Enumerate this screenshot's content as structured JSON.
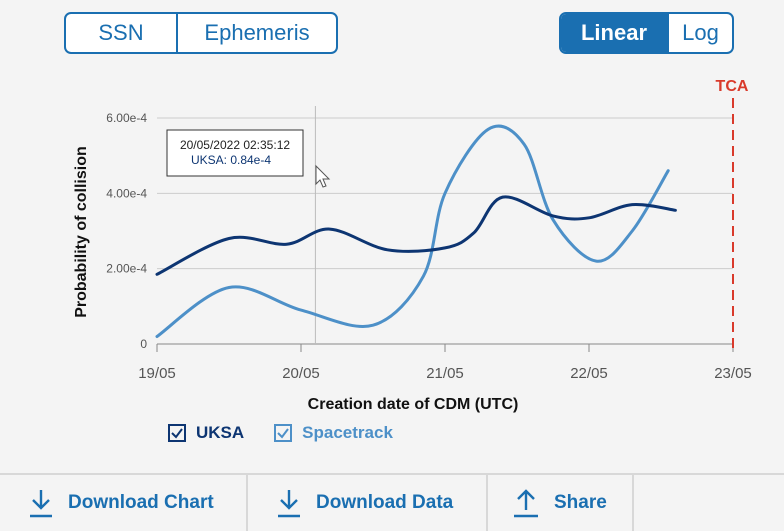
{
  "toggles": {
    "left": [
      "SSN",
      "Ephemeris"
    ],
    "scale": [
      "Linear",
      "Log"
    ],
    "scale_active": "Linear"
  },
  "chart_data": {
    "type": "line",
    "xlabel": "Creation date of CDM (UTC)",
    "ylabel": "Probability of collision",
    "x_ticks": [
      "19/05",
      "20/05",
      "21/05",
      "22/05",
      "23/05"
    ],
    "y_ticks": [
      "0",
      "2.00e-4",
      "4.00e-4",
      "6.00e-4"
    ],
    "ylim": [
      0,
      0.0006
    ],
    "tca_label": "TCA",
    "tca_x": 4.0,
    "tooltip": {
      "line1": "20/05/2022 02:35:12",
      "line2": "UKSA: 0.84e-4"
    },
    "cursor_x": 1.1,
    "series": [
      {
        "name": "UKSA",
        "color": "#0d3572",
        "x": [
          0.0,
          0.5,
          0.9,
          1.2,
          1.6,
          2.0,
          2.2,
          2.4,
          2.75,
          3.0,
          3.3,
          3.6
        ],
        "values": [
          0.000185,
          0.00028,
          0.000265,
          0.000305,
          0.00025,
          0.000255,
          0.000295,
          0.00039,
          0.00034,
          0.000335,
          0.00037,
          0.000355
        ]
      },
      {
        "name": "Spacetrack",
        "color": "#4d90c8",
        "x": [
          0.0,
          0.5,
          1.0,
          1.5,
          1.85,
          2.0,
          2.3,
          2.55,
          2.75,
          3.05,
          3.3,
          3.55
        ],
        "values": [
          2e-05,
          0.00015,
          9e-05,
          5e-05,
          0.00018,
          0.0004,
          0.00057,
          0.00053,
          0.00033,
          0.00022,
          0.0003,
          0.00046
        ]
      }
    ]
  },
  "legend": {
    "uksa_label": "UKSA",
    "spacetrack_label": "Spacetrack"
  },
  "actions": {
    "download_chart": "Download Chart",
    "download_data": "Download Data",
    "share": "Share"
  }
}
